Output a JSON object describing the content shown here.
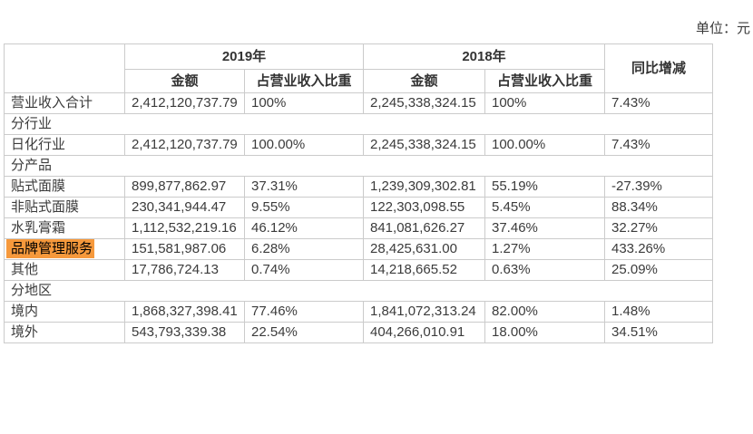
{
  "unit_label": "单位：元",
  "colors": {
    "highlight": "#F6993C",
    "border": "#CBCBCB",
    "text": "#3B3B3B"
  },
  "table": {
    "header": {
      "year_2019": "2019年",
      "year_2018": "2018年",
      "amount": "金额",
      "ratio": "占营业收入比重",
      "yoy": "同比增减"
    },
    "rows": [
      {
        "type": "data",
        "label": "营业收入合计",
        "a2019": "2,412,120,737.79",
        "r2019": "100%",
        "a2018": "2,245,338,324.15",
        "r2018": "100%",
        "yoy": "7.43%"
      },
      {
        "type": "section",
        "label": "分行业"
      },
      {
        "type": "data",
        "label": "日化行业",
        "a2019": "2,412,120,737.79",
        "r2019": "100.00%",
        "a2018": "2,245,338,324.15",
        "r2018": "100.00%",
        "yoy": "7.43%"
      },
      {
        "type": "section",
        "label": "分产品"
      },
      {
        "type": "data",
        "label": "贴式面膜",
        "a2019": "899,877,862.97",
        "r2019": "37.31%",
        "a2018": "1,239,309,302.81",
        "r2018": "55.19%",
        "yoy": "-27.39%"
      },
      {
        "type": "data",
        "label": "非贴式面膜",
        "a2019": "230,341,944.47",
        "r2019": "9.55%",
        "a2018": "122,303,098.55",
        "r2018": "5.45%",
        "yoy": "88.34%"
      },
      {
        "type": "data",
        "label": "水乳膏霜",
        "a2019": "1,112,532,219.16",
        "r2019": "46.12%",
        "a2018": "841,081,626.27",
        "r2018": "37.46%",
        "yoy": "32.27%"
      },
      {
        "type": "data",
        "label": "品牌管理服务",
        "highlighted": true,
        "a2019": "151,581,987.06",
        "r2019": "6.28%",
        "a2018": "28,425,631.00",
        "r2018": "1.27%",
        "yoy": "433.26%"
      },
      {
        "type": "data",
        "label": "其他",
        "a2019": "17,786,724.13",
        "r2019": "0.74%",
        "a2018": "14,218,665.52",
        "r2018": "0.63%",
        "yoy": "25.09%"
      },
      {
        "type": "section",
        "label": "分地区"
      },
      {
        "type": "data",
        "label": "境内",
        "a2019": "1,868,327,398.41",
        "r2019": "77.46%",
        "a2018": "1,841,072,313.24",
        "r2018": "82.00%",
        "yoy": "1.48%"
      },
      {
        "type": "data",
        "label": "境外",
        "a2019": "543,793,339.38",
        "r2019": "22.54%",
        "a2018": "404,266,010.91",
        "r2018": "18.00%",
        "yoy": "34.51%"
      }
    ]
  }
}
